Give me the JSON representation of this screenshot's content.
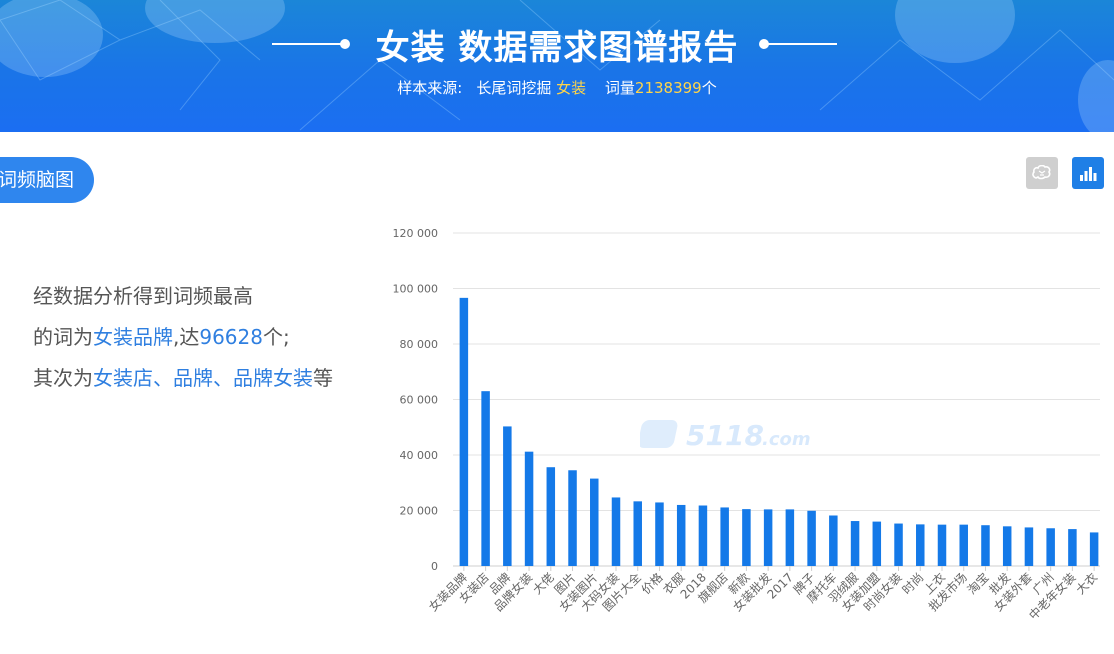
{
  "banner": {
    "title": "女装 数据需求图谱报告",
    "source_label": "样本来源:",
    "source_tool": "长尾词挖掘",
    "keyword": "女装",
    "count_label": "词量",
    "count_value": "2138399",
    "count_unit": "个"
  },
  "section_tab": {
    "label": "词频脑图"
  },
  "view_buttons": {
    "brain": "brain-icon",
    "bars": "bar-chart-icon"
  },
  "summary": {
    "line1": "经数据分析得到词频最高",
    "line2_prefix": "的词为",
    "top_word": "女装品牌",
    "line2_mid": ",达",
    "top_value": "96628",
    "line2_suffix": "个;",
    "line3_prefix": "其次为",
    "next_words": "女装店、品牌、品牌女装",
    "line3_suffix": "等"
  },
  "watermark": {
    "text": "5118",
    "suffix": ".com"
  },
  "chart_data": {
    "type": "bar",
    "categories": [
      "女装品牌",
      "女装店",
      "品牌",
      "品牌女装",
      "大佬",
      "图片",
      "女装图片",
      "大码女装",
      "图片大全",
      "价格",
      "衣服",
      "2018",
      "旗舰店",
      "新款",
      "女装批发",
      "2017",
      "牌子",
      "摩托车",
      "羽绒服",
      "女装加盟",
      "时尚女装",
      "时尚",
      "上衣",
      "批发市场",
      "淘宝",
      "批发",
      "女装外套",
      "广州",
      "中老年女装",
      "大衣"
    ],
    "values": [
      96628,
      63000,
      50300,
      41200,
      35600,
      34500,
      31500,
      24700,
      23300,
      22900,
      22000,
      21800,
      21100,
      20500,
      20400,
      20400,
      19900,
      18200,
      16200,
      16000,
      15300,
      15000,
      14900,
      14900,
      14700,
      14300,
      13900,
      13600,
      13300,
      12100
    ],
    "ylim": [
      0,
      120000
    ],
    "yticks": [
      "0",
      "20 000",
      "40 000",
      "60 000",
      "80 000",
      "100 000",
      "120 000"
    ],
    "grid": true,
    "bar_color": "#1479e8"
  }
}
